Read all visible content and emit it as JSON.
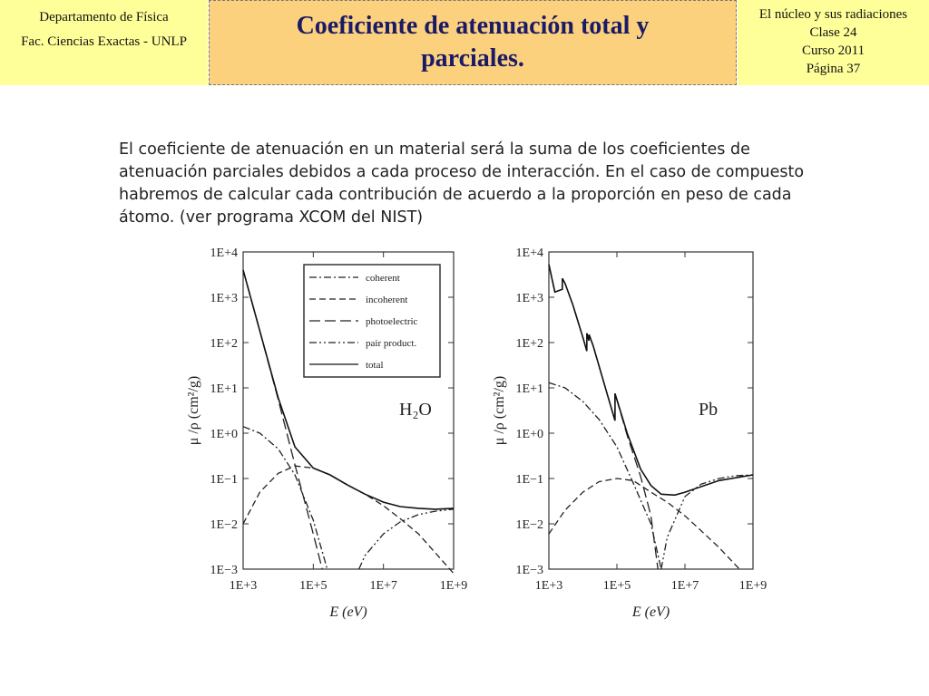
{
  "header": {
    "left": [
      "Departamento de Física",
      "Fac. Ciencias Exactas - UNLP"
    ],
    "title": "Coeficiente de atenuación total y parciales.",
    "right": [
      "El núcleo y sus radiaciones",
      "Clase 24",
      "Curso 2011",
      "Página 37"
    ]
  },
  "body": {
    "lines": [
      "El coeficiente de atenuación en un material será la suma de los coeficientes de",
      "atenuación parciales debidos a cada proceso de interacción. En el caso de compuesto",
      "habremos de calcular cada contribución de acuerdo a la proporción en peso de cada",
      "átomo. (ver programa XCOM del NIST)"
    ]
  },
  "chart_data": [
    {
      "type": "line",
      "annotation": "H₂O",
      "xlabel": "E (eV)",
      "ylabel": "μ /ρ (cm²/g)",
      "log_x": true,
      "log_y": true,
      "legend": "upper right",
      "xlim": [
        1000,
        1000000000
      ],
      "ylim": [
        0.001,
        10000
      ],
      "xticks": [
        {
          "value": 1000,
          "label": "1E+3"
        },
        {
          "value": 100000,
          "label": "1E+5"
        },
        {
          "value": 10000000,
          "label": "1E+7"
        },
        {
          "value": 1000000000,
          "label": "1E+9"
        }
      ],
      "yticks": [
        {
          "value": 0.001,
          "label": "1E−3"
        },
        {
          "value": 0.01,
          "label": "1E−2"
        },
        {
          "value": 0.1,
          "label": "1E−1"
        },
        {
          "value": 1,
          "label": "1E+0"
        },
        {
          "value": 10,
          "label": "1E+1"
        },
        {
          "value": 100,
          "label": "1E+2"
        },
        {
          "value": 1000,
          "label": "1E+3"
        },
        {
          "value": 10000,
          "label": "1E+4"
        }
      ],
      "series": [
        {
          "name": "coherent",
          "color": "#222222",
          "dash": "dash-dot",
          "x": [
            1000,
            3000,
            10000,
            30000,
            100000,
            250000
          ],
          "values": [
            1.4,
            1.0,
            0.45,
            0.12,
            0.012,
            0.001
          ]
        },
        {
          "name": "incoherent",
          "color": "#222222",
          "dash": "dashed",
          "x": [
            1000,
            3000,
            10000,
            30000,
            100000,
            300000,
            1000000,
            3000000,
            10000000,
            30000000,
            100000000,
            1000000000
          ],
          "values": [
            0.01,
            0.05,
            0.13,
            0.19,
            0.17,
            0.12,
            0.07,
            0.045,
            0.025,
            0.013,
            0.006,
            0.0008
          ]
        },
        {
          "name": "photoelectric",
          "color": "#222222",
          "dash": "long-dash",
          "x": [
            1000,
            3000,
            10000,
            30000,
            100000,
            180000
          ],
          "values": [
            4000,
            180,
            5.5,
            0.2,
            0.006,
            0.001
          ]
        },
        {
          "name": "pair product.",
          "color": "#222222",
          "dash": "dash-dot-dot",
          "x": [
            2000000,
            3000000,
            10000000,
            30000000,
            100000000,
            300000000,
            1000000000
          ],
          "values": [
            0.001,
            0.002,
            0.006,
            0.011,
            0.016,
            0.019,
            0.021
          ]
        },
        {
          "name": "total",
          "color": "#111111",
          "dash": "solid",
          "x": [
            1000,
            3000,
            10000,
            30000,
            100000,
            300000,
            1000000,
            3000000,
            10000000,
            30000000,
            100000000,
            300000000,
            1000000000
          ],
          "values": [
            4000,
            180,
            6,
            0.5,
            0.17,
            0.12,
            0.07,
            0.045,
            0.03,
            0.024,
            0.022,
            0.021,
            0.022
          ]
        }
      ]
    },
    {
      "type": "line",
      "annotation": "Pb",
      "xlabel": "E (eV)",
      "ylabel": "μ /ρ (cm²/g)",
      "log_x": true,
      "log_y": true,
      "legend": false,
      "xlim": [
        1000,
        1000000000
      ],
      "ylim": [
        0.001,
        10000
      ],
      "xticks": [
        {
          "value": 1000,
          "label": "1E+3"
        },
        {
          "value": 100000,
          "label": "1E+5"
        },
        {
          "value": 10000000,
          "label": "1E+7"
        },
        {
          "value": 1000000000,
          "label": "1E+9"
        }
      ],
      "yticks": [
        {
          "value": 0.001,
          "label": "1E−3"
        },
        {
          "value": 0.01,
          "label": "1E−2"
        },
        {
          "value": 0.1,
          "label": "1E−1"
        },
        {
          "value": 1,
          "label": "1E+0"
        },
        {
          "value": 10,
          "label": "1E+1"
        },
        {
          "value": 100,
          "label": "1E+2"
        },
        {
          "value": 1000,
          "label": "1E+3"
        },
        {
          "value": 10000,
          "label": "1E+4"
        }
      ],
      "series": [
        {
          "name": "coherent",
          "color": "#222222",
          "dash": "dash-dot",
          "x": [
            1000,
            3000,
            10000,
            30000,
            100000,
            300000,
            1000000,
            2000000
          ],
          "values": [
            13,
            10,
            5,
            2,
            0.5,
            0.08,
            0.01,
            0.001
          ]
        },
        {
          "name": "incoherent",
          "color": "#222222",
          "dash": "dashed",
          "x": [
            1000,
            3000,
            10000,
            30000,
            100000,
            300000,
            1000000,
            3000000,
            10000000,
            30000000,
            100000000,
            400000000
          ],
          "values": [
            0.006,
            0.02,
            0.05,
            0.085,
            0.1,
            0.09,
            0.05,
            0.03,
            0.015,
            0.007,
            0.003,
            0.001
          ]
        },
        {
          "name": "photoelectric",
          "color": "#222222",
          "dash": "long-dash",
          "x": [
            1000,
            1500,
            2480,
            2500,
            3000,
            5000,
            10000,
            13000,
            13100,
            15000,
            15200,
            20000,
            50000,
            88000,
            88100,
            100000,
            200000,
            500000,
            1000000,
            1600000
          ],
          "values": [
            5300,
            1300,
            1500,
            2600,
            2000,
            700,
            130,
            65,
            160,
            110,
            150,
            85,
            8,
            1.9,
            7.5,
            5.4,
            0.9,
            0.11,
            0.015,
            0.001
          ]
        },
        {
          "name": "pair product.",
          "color": "#222222",
          "dash": "dash-dot-dot",
          "x": [
            2000000,
            3000000,
            10000000,
            30000000,
            100000000,
            300000000,
            1000000000
          ],
          "values": [
            0.001,
            0.005,
            0.04,
            0.075,
            0.1,
            0.115,
            0.12
          ]
        },
        {
          "name": "total",
          "color": "#111111",
          "dash": "solid",
          "x": [
            1000,
            1500,
            2480,
            2500,
            3000,
            5000,
            10000,
            13000,
            13100,
            15000,
            15200,
            20000,
            50000,
            88000,
            88100,
            100000,
            200000,
            500000,
            1000000,
            2000000,
            5000000,
            10000000,
            100000000,
            1000000000
          ],
          "values": [
            5300,
            1300,
            1500,
            2600,
            2000,
            700,
            130,
            65,
            160,
            110,
            150,
            85,
            8,
            1.9,
            7.5,
            5.5,
            1.0,
            0.16,
            0.07,
            0.045,
            0.043,
            0.05,
            0.09,
            0.12
          ]
        }
      ]
    }
  ]
}
